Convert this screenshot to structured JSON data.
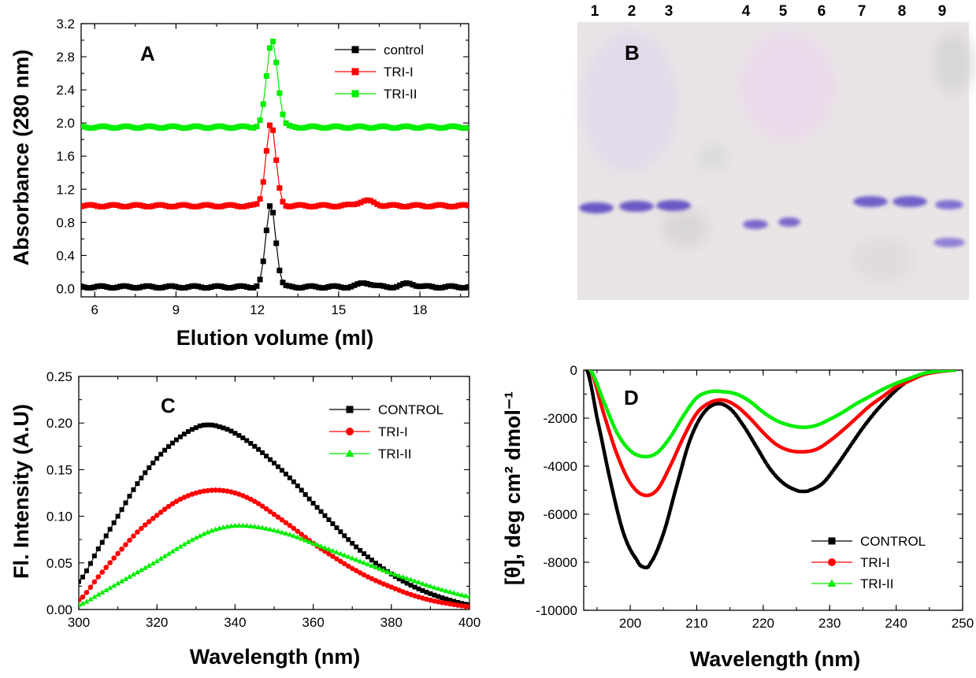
{
  "chart_data": [
    {
      "panel": "A",
      "type": "line",
      "xlabel": "Elution volume (ml)",
      "ylabel": "Absorbance (280 nm)",
      "xlim": [
        5.5,
        19.8
      ],
      "ylim": [
        -0.1,
        3.2
      ],
      "xticks": [
        6,
        9,
        12,
        15,
        18
      ],
      "yticks": [
        "0.0",
        "0.4",
        "0.8",
        "1.2",
        "1.6",
        "2.0",
        "2.4",
        "2.8",
        "3.2"
      ],
      "legend_position": "top-right",
      "series": [
        {
          "name": "control",
          "color": "#000000",
          "marker": "square",
          "baseline": 0.02,
          "peaks": [
            [
              12.5,
              1.0,
              0.18
            ],
            [
              16.0,
              0.05,
              0.25
            ],
            [
              17.6,
              0.04,
              0.25
            ]
          ]
        },
        {
          "name": "TRI-I",
          "color": "#ff0000",
          "marker": "square",
          "baseline": 1.0,
          "peaks": [
            [
              12.5,
              1.0,
              0.18
            ],
            [
              16.0,
              0.06,
              0.3
            ]
          ]
        },
        {
          "name": "TRI-II",
          "color": "#00ee00",
          "marker": "square",
          "baseline": 1.95,
          "peaks": [
            [
              12.55,
              1.05,
              0.2
            ]
          ]
        }
      ]
    },
    {
      "panel": "B",
      "type": "gel",
      "lanes": [
        "1",
        "2",
        "3",
        "4",
        "5",
        "6",
        "7",
        "8",
        "9"
      ]
    },
    {
      "panel": "C",
      "type": "line",
      "xlabel": "Wavelength (nm)",
      "ylabel": "Fl. Intensity (A.U)",
      "xlim": [
        300,
        400
      ],
      "ylim": [
        0,
        0.25
      ],
      "xticks": [
        300,
        320,
        340,
        360,
        380,
        400
      ],
      "yticks": [
        "0.00",
        "0.05",
        "0.10",
        "0.15",
        "0.20",
        "0.25"
      ],
      "legend_position": "top-right",
      "series": [
        {
          "name": "CONTROL",
          "color": "#000000",
          "marker": "square",
          "x": [
            300,
            305,
            310,
            315,
            320,
            325,
            330,
            333,
            336,
            340,
            345,
            350,
            355,
            360,
            365,
            370,
            375,
            380,
            385,
            390,
            395,
            400
          ],
          "y": [
            0.03,
            0.065,
            0.1,
            0.135,
            0.162,
            0.182,
            0.195,
            0.198,
            0.196,
            0.189,
            0.175,
            0.157,
            0.137,
            0.114,
            0.092,
            0.071,
            0.053,
            0.038,
            0.026,
            0.017,
            0.01,
            0.005
          ]
        },
        {
          "name": "TRI-I",
          "color": "#ff0000",
          "marker": "circle",
          "x": [
            300,
            305,
            310,
            315,
            320,
            325,
            330,
            335,
            340,
            345,
            350,
            355,
            360,
            365,
            370,
            375,
            380,
            385,
            390,
            395,
            400
          ],
          "y": [
            0.01,
            0.035,
            0.06,
            0.083,
            0.101,
            0.116,
            0.125,
            0.128,
            0.125,
            0.116,
            0.102,
            0.087,
            0.071,
            0.057,
            0.044,
            0.033,
            0.024,
            0.016,
            0.01,
            0.006,
            0.003
          ]
        },
        {
          "name": "TRI-II",
          "color": "#00ee00",
          "marker": "triangle",
          "x": [
            300,
            305,
            310,
            315,
            320,
            325,
            330,
            335,
            340,
            345,
            350,
            355,
            360,
            365,
            370,
            375,
            380,
            385,
            390,
            395,
            400
          ],
          "y": [
            0.005,
            0.016,
            0.028,
            0.04,
            0.052,
            0.065,
            0.077,
            0.086,
            0.09,
            0.089,
            0.085,
            0.079,
            0.071,
            0.063,
            0.055,
            0.047,
            0.039,
            0.032,
            0.025,
            0.019,
            0.014
          ]
        }
      ]
    },
    {
      "panel": "D",
      "type": "line",
      "xlabel": "Wavelength (nm)",
      "ylabel": "[θ], deg cm² dmol⁻¹",
      "xlim": [
        193,
        250
      ],
      "ylim": [
        -10000,
        0
      ],
      "xticks": [
        200,
        210,
        220,
        230,
        240,
        250
      ],
      "yticks": [
        "0",
        "-2000",
        "-4000",
        "-6000",
        "-8000",
        "-10000"
      ],
      "legend_position": "bottom-right",
      "series": [
        {
          "name": "CONTROL",
          "color": "#000000",
          "marker": "square",
          "x": [
            193.5,
            195,
            197,
            199,
            201,
            202,
            203,
            205,
            207,
            209,
            211,
            213,
            215,
            217,
            219,
            221,
            223,
            225,
            226,
            227,
            229,
            231,
            233,
            235,
            237,
            239,
            241,
            243,
            245,
            247,
            249
          ],
          "y": [
            0,
            -2000,
            -4600,
            -6800,
            -7900,
            -8200,
            -8050,
            -6800,
            -4800,
            -2900,
            -1800,
            -1400,
            -1600,
            -2300,
            -3200,
            -4100,
            -4700,
            -5000,
            -5050,
            -5000,
            -4700,
            -4000,
            -3200,
            -2400,
            -1700,
            -1100,
            -600,
            -300,
            -100,
            -30,
            0
          ]
        },
        {
          "name": "TRI-I",
          "color": "#ff0000",
          "marker": "circle",
          "x": [
            194,
            196,
            198,
            200,
            202,
            204,
            206,
            208,
            210,
            212,
            214,
            216,
            218,
            220,
            222,
            224,
            226,
            228,
            230,
            232,
            234,
            236,
            238,
            240,
            242,
            244,
            246,
            249
          ],
          "y": [
            0,
            -1800,
            -3500,
            -4700,
            -5200,
            -5000,
            -4000,
            -2800,
            -1800,
            -1350,
            -1250,
            -1500,
            -2000,
            -2600,
            -3100,
            -3350,
            -3400,
            -3300,
            -2950,
            -2500,
            -2000,
            -1500,
            -1100,
            -700,
            -450,
            -200,
            -80,
            0
          ]
        },
        {
          "name": "TRI-II",
          "color": "#00ee00",
          "marker": "triangle",
          "x": [
            194,
            196,
            198,
            200,
            202,
            204,
            206,
            208,
            210,
            212,
            214,
            216,
            218,
            220,
            222,
            224,
            226,
            228,
            230,
            232,
            234,
            236,
            238,
            240,
            242,
            244,
            246,
            249
          ],
          "y": [
            0,
            -1300,
            -2600,
            -3350,
            -3600,
            -3450,
            -2800,
            -1900,
            -1150,
            -900,
            -900,
            -1000,
            -1300,
            -1750,
            -2100,
            -2300,
            -2380,
            -2300,
            -2050,
            -1750,
            -1400,
            -1100,
            -800,
            -550,
            -350,
            -150,
            -50,
            0
          ]
        }
      ]
    }
  ]
}
